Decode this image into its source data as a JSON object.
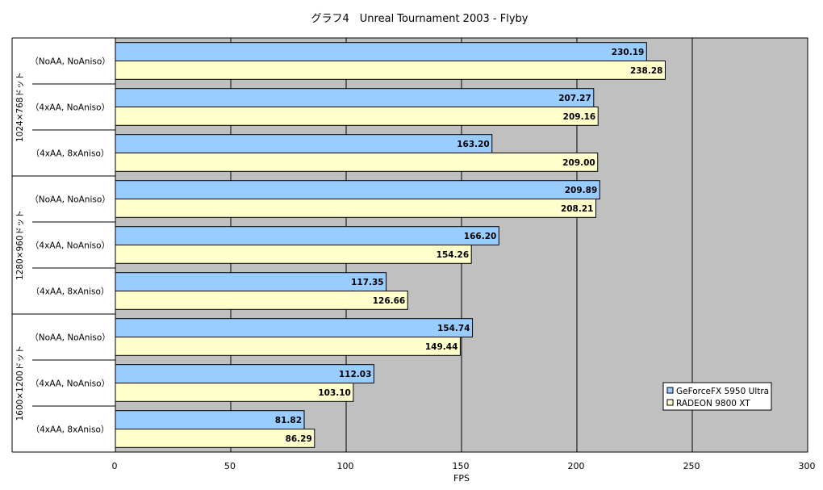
{
  "chart_data": {
    "type": "bar",
    "orientation": "horizontal",
    "title": "グラフ4　Unreal Tournament 2003 - Flyby",
    "xlabel": "FPS",
    "xlim": [
      0,
      300
    ],
    "xticks": [
      "0",
      "50",
      "100",
      "150",
      "200",
      "250",
      "300"
    ],
    "grid": true,
    "legend_position": "bottom-right",
    "groups": [
      {
        "label": "1024×768ドット",
        "categories": [
          "（NoAA, NoAniso）",
          "（4xAA, NoAniso）",
          "（4xAA, 8xAniso）"
        ]
      },
      {
        "label": "1280×960ドット",
        "categories": [
          "（NoAA, NoAniso）",
          "（4xAA, NoAniso）",
          "（4xAA, 8xAniso）"
        ]
      },
      {
        "label": "1600×1200ドット",
        "categories": [
          "（NoAA, NoAniso）",
          "（4xAA, NoAniso）",
          "（4xAA, 8xAniso）"
        ]
      }
    ],
    "series": [
      {
        "name": "GeForceFX 5950 Ultra",
        "color": "#99CCFF",
        "values": [
          230.19,
          207.27,
          163.2,
          209.89,
          166.2,
          117.35,
          154.74,
          112.03,
          81.82
        ],
        "labels": [
          "230.19",
          "207.27",
          "163.20",
          "209.89",
          "166.20",
          "117.35",
          "154.74",
          "112.03",
          "81.82"
        ]
      },
      {
        "name": "RADEON 9800 XT",
        "color": "#FFFFCC",
        "values": [
          238.28,
          209.16,
          209.0,
          208.21,
          154.26,
          126.66,
          149.44,
          103.1,
          86.29
        ],
        "labels": [
          "238.28",
          "209.16",
          "209.00",
          "208.21",
          "154.26",
          "126.66",
          "149.44",
          "103.10",
          "86.29"
        ]
      }
    ],
    "plot_background": "#C0C0C0"
  }
}
